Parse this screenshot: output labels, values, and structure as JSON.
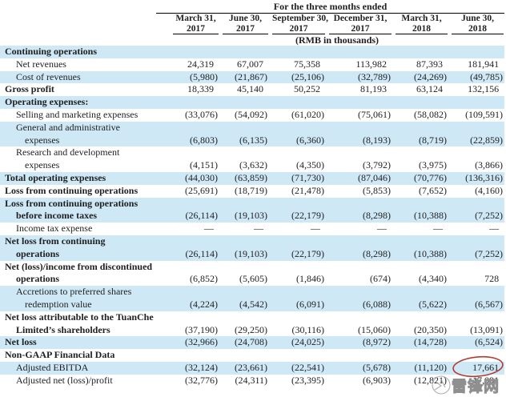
{
  "table": {
    "spanner": "For the three months ended",
    "unit_note": "(RMB in thousands)",
    "columns": [
      {
        "line1": "March 31,",
        "line2": "2017"
      },
      {
        "line1": "June 30,",
        "line2": "2017"
      },
      {
        "line1": "September 30,",
        "line2": "2017"
      },
      {
        "line1": "December 31,",
        "line2": "2017"
      },
      {
        "line1": "March 31,",
        "line2": "2018"
      },
      {
        "line1": "June 30,",
        "line2": "2018"
      }
    ],
    "rows": [
      {
        "label_lines": [
          "Continuing operations"
        ],
        "bold": true,
        "indent": 0,
        "shaded": true,
        "values": [
          "",
          "",
          "",
          "",
          "",
          ""
        ]
      },
      {
        "label_lines": [
          "Net revenues"
        ],
        "bold": false,
        "indent": 1,
        "shaded": false,
        "values": [
          "24,319",
          "67,007",
          "75,358",
          "113,982",
          "87,393",
          "181,941"
        ]
      },
      {
        "label_lines": [
          "Cost of revenues"
        ],
        "bold": false,
        "indent": 1,
        "shaded": true,
        "values": [
          "(5,980)",
          "(21,867)",
          "(25,106)",
          "(32,789)",
          "(24,269)",
          "(49,785)"
        ]
      },
      {
        "label_lines": [
          "Gross profit"
        ],
        "bold": true,
        "indent": 0,
        "shaded": false,
        "values": [
          "18,339",
          "45,140",
          "50,252",
          "81,193",
          "63,124",
          "132,156"
        ]
      },
      {
        "label_lines": [
          "Operating expenses:"
        ],
        "bold": true,
        "indent": 0,
        "shaded": true,
        "values": [
          "",
          "",
          "",
          "",
          "",
          ""
        ]
      },
      {
        "label_lines": [
          "Selling and marketing expenses"
        ],
        "bold": false,
        "indent": 1,
        "shaded": false,
        "values": [
          "(33,076)",
          "(54,092)",
          "(61,020)",
          "(75,061)",
          "(58,082)",
          "(109,591)"
        ]
      },
      {
        "label_lines": [
          "General and administrative",
          "expenses"
        ],
        "bold": false,
        "indent": 1,
        "indent2": 2,
        "shaded": true,
        "values": [
          "(6,803)",
          "(6,135)",
          "(6,360)",
          "(8,193)",
          "(8,719)",
          "(22,859)"
        ]
      },
      {
        "label_lines": [
          "Research and development",
          "expenses"
        ],
        "bold": false,
        "indent": 1,
        "indent2": 2,
        "shaded": false,
        "values": [
          "(4,151)",
          "(3,632)",
          "(4,350)",
          "(3,792)",
          "(3,975)",
          "(3,866)"
        ]
      },
      {
        "label_lines": [
          "Total operating expenses"
        ],
        "bold": true,
        "indent": 0,
        "shaded": true,
        "values": [
          "(44,030)",
          "(63,859)",
          "(71,730)",
          "(87,046)",
          "(70,776)",
          "(136,316)"
        ]
      },
      {
        "label_lines": [
          "Loss from continuing operations"
        ],
        "bold": true,
        "indent": 0,
        "shaded": false,
        "values": [
          "(25,691)",
          "(18,719)",
          "(21,478)",
          "(5,853)",
          "(7,652)",
          "(4,160)"
        ]
      },
      {
        "label_lines": [
          "Loss from continuing operations",
          "before income taxes"
        ],
        "bold": true,
        "indent": 0,
        "indent2": 1,
        "shaded": true,
        "values": [
          "(26,114)",
          "(19,103)",
          "(22,179)",
          "(8,298)",
          "(10,388)",
          "(7,252)"
        ]
      },
      {
        "label_lines": [
          "Income tax expense"
        ],
        "bold": false,
        "indent": 1,
        "shaded": false,
        "values": [
          "—",
          "—",
          "—",
          "—",
          "—",
          "—"
        ]
      },
      {
        "label_lines": [
          "Net loss from continuing",
          "operations"
        ],
        "bold": true,
        "indent": 0,
        "indent2": 1,
        "shaded": true,
        "values": [
          "(26,114)",
          "(19,103)",
          "(22,179)",
          "(8,298)",
          "(10,388)",
          "(7,252)"
        ]
      },
      {
        "label_lines": [
          "Net (loss)/income from discontinued",
          "operations"
        ],
        "bold": true,
        "indent": 0,
        "indent2": 1,
        "shaded": false,
        "values": [
          "(6,852)",
          "(5,605)",
          "(1,846)",
          "(674)",
          "(4,340)",
          "728"
        ]
      },
      {
        "label_lines": [
          "Accretions to preferred shares",
          "redemption value"
        ],
        "bold": false,
        "indent": 1,
        "indent2": 2,
        "shaded": true,
        "values": [
          "(4,224)",
          "(4,542)",
          "(6,091)",
          "(6,088)",
          "(5,622)",
          "(6,567)"
        ]
      },
      {
        "label_lines": [
          "Net loss attributable to the TuanChe",
          "Limited’s shareholders"
        ],
        "bold": true,
        "indent": 0,
        "indent2": 1,
        "shaded": false,
        "values": [
          "(37,190)",
          "(29,250)",
          "(30,116)",
          "(15,060)",
          "(20,350)",
          "(13,091)"
        ]
      },
      {
        "label_lines": [
          "Net loss"
        ],
        "bold": true,
        "indent": 0,
        "shaded": true,
        "values": [
          "(32,966)",
          "(24,708)",
          "(24,025)",
          "(8,972)",
          "(14,728)",
          "(6,524)"
        ]
      },
      {
        "label_lines": [
          "Non-GAAP Financial Data"
        ],
        "bold": true,
        "indent": 0,
        "shaded": false,
        "values": [
          "",
          "",
          "",
          "",
          "",
          ""
        ]
      },
      {
        "label_lines": [
          "Adjusted EBITDA"
        ],
        "bold": false,
        "indent": 1,
        "shaded": true,
        "values": [
          "(32,124)",
          "(23,661)",
          "(22,541)",
          "(5,678)",
          "(11,120)",
          "17,661"
        ]
      },
      {
        "label_lines": [
          "Adjusted net (loss)/profit"
        ],
        "bold": false,
        "indent": 1,
        "shaded": false,
        "values": [
          "(32,776)",
          "(24,311)",
          "(23,395)",
          "(6,903)",
          "(12,821)",
          "17,091"
        ]
      }
    ]
  },
  "annotations": {
    "highlight_circle_target": "17,661",
    "highlight_circle_color": "#b23b32",
    "watermark_text": "雷锋网",
    "watermark_color": "#8f8f8f"
  },
  "colors": {
    "stripe": "#cfe8f6",
    "rule": "#000000",
    "text": "#1f1f1f"
  }
}
